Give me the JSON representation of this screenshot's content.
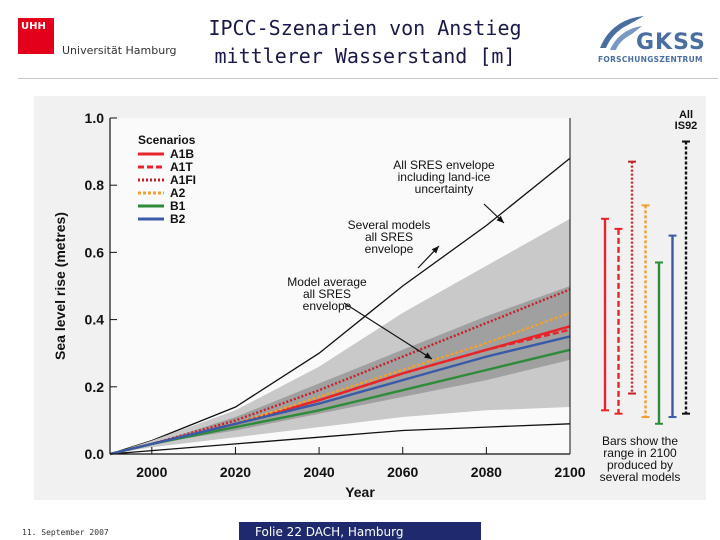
{
  "header": {
    "uhh_mark": "UHH",
    "uhh_name": "Universität Hamburg",
    "title_line1": "IPCC-Szenarien von Anstieg",
    "title_line2": "mittlerer Wasserstand [m]",
    "gkss_word": "GKSS",
    "gkss_sub": "FORSCHUNGSZENTRUM"
  },
  "footer": {
    "date": "11. September 2007",
    "slide": "Folie 22 DACH, Hamburg"
  },
  "chart_data": {
    "type": "line",
    "xlabel": "Year",
    "ylabel": "Sea level rise (metres)",
    "xlim": [
      1990,
      2100
    ],
    "ylim": [
      0.0,
      1.0
    ],
    "xticks": [
      "2000",
      "2020",
      "2040",
      "2060",
      "2080",
      "2100"
    ],
    "yticks": [
      "0.0",
      "0.2",
      "0.4",
      "0.6",
      "0.8",
      "1.0"
    ],
    "grid": false,
    "legend_title": "Scenarios",
    "legend_position": "top-left",
    "series": [
      {
        "name": "A1B",
        "color": "#e8242a",
        "dash": "",
        "x": [
          1990,
          2000,
          2020,
          2040,
          2060,
          2080,
          2100
        ],
        "values": [
          0.0,
          0.03,
          0.09,
          0.16,
          0.24,
          0.31,
          0.38
        ]
      },
      {
        "name": "A1T",
        "color": "#e8242a",
        "dash": "6,3",
        "x": [
          1990,
          2000,
          2020,
          2040,
          2060,
          2080,
          2100
        ],
        "values": [
          0.0,
          0.03,
          0.09,
          0.16,
          0.24,
          0.31,
          0.37
        ]
      },
      {
        "name": "A1FI",
        "color": "#c8202a",
        "dash": "2,2",
        "x": [
          1990,
          2000,
          2020,
          2040,
          2060,
          2080,
          2100
        ],
        "values": [
          0.0,
          0.03,
          0.1,
          0.19,
          0.29,
          0.39,
          0.49
        ]
      },
      {
        "name": "A2",
        "color": "#f0a030",
        "dash": "3,2",
        "x": [
          1990,
          2000,
          2020,
          2040,
          2060,
          2080,
          2100
        ],
        "values": [
          0.0,
          0.03,
          0.09,
          0.17,
          0.25,
          0.33,
          0.42
        ]
      },
      {
        "name": "B1",
        "color": "#2e8b3a",
        "dash": "",
        "x": [
          1990,
          2000,
          2020,
          2040,
          2060,
          2080,
          2100
        ],
        "values": [
          0.0,
          0.03,
          0.08,
          0.13,
          0.19,
          0.25,
          0.31
        ]
      },
      {
        "name": "B2",
        "color": "#3a5aa8",
        "dash": "",
        "x": [
          1990,
          2000,
          2020,
          2040,
          2060,
          2080,
          2100
        ],
        "values": [
          0.0,
          0.03,
          0.09,
          0.15,
          0.22,
          0.29,
          0.35
        ]
      }
    ],
    "envelopes": [
      {
        "label": "All SRES envelope including land-ice uncertainty",
        "x": [
          1990,
          2000,
          2020,
          2040,
          2060,
          2080,
          2100
        ],
        "lower": [
          0.0,
          0.01,
          0.03,
          0.05,
          0.07,
          0.08,
          0.09
        ],
        "upper": [
          0.0,
          0.04,
          0.14,
          0.3,
          0.5,
          0.68,
          0.88
        ]
      },
      {
        "label": "Several models all SRES envelope",
        "x": [
          1990,
          2000,
          2020,
          2040,
          2060,
          2080,
          2100
        ],
        "lower": [
          0.0,
          0.02,
          0.05,
          0.08,
          0.11,
          0.13,
          0.14
        ],
        "upper": [
          0.0,
          0.04,
          0.13,
          0.26,
          0.42,
          0.56,
          0.7
        ]
      },
      {
        "label": "Model average all SRES envelope",
        "x": [
          1990,
          2000,
          2020,
          2040,
          2060,
          2080,
          2100
        ],
        "lower": [
          0.0,
          0.03,
          0.07,
          0.12,
          0.17,
          0.22,
          0.28
        ],
        "upper": [
          0.0,
          0.03,
          0.11,
          0.21,
          0.31,
          0.41,
          0.5
        ]
      }
    ],
    "range_bars": [
      {
        "name": "A1B",
        "color": "#e8242a",
        "dash": "",
        "low": 0.13,
        "high": 0.7
      },
      {
        "name": "A1T",
        "color": "#e8242a",
        "dash": "6,3",
        "low": 0.12,
        "high": 0.67
      },
      {
        "name": "A1FI",
        "color": "#c8202a",
        "dash": "2,2",
        "low": 0.18,
        "high": 0.87
      },
      {
        "name": "A2",
        "color": "#f0a030",
        "dash": "3,2",
        "low": 0.11,
        "high": 0.74
      },
      {
        "name": "B1",
        "color": "#2e8b3a",
        "dash": "",
        "low": 0.09,
        "high": 0.57
      },
      {
        "name": "B2",
        "color": "#3a5aa8",
        "dash": "",
        "low": 0.11,
        "high": 0.65
      },
      {
        "name": "All IS92",
        "color": "#111111",
        "dash": "3,2",
        "low": 0.12,
        "high": 0.93
      }
    ],
    "annotations": [
      {
        "text": "All SRES envelope including land-ice uncertainty"
      },
      {
        "text": "Several models all SRES envelope"
      },
      {
        "text": "Model average all SRES envelope"
      },
      {
        "text": "Bars show the range in 2100 produced by several models"
      },
      {
        "text": "All IS92"
      }
    ]
  }
}
